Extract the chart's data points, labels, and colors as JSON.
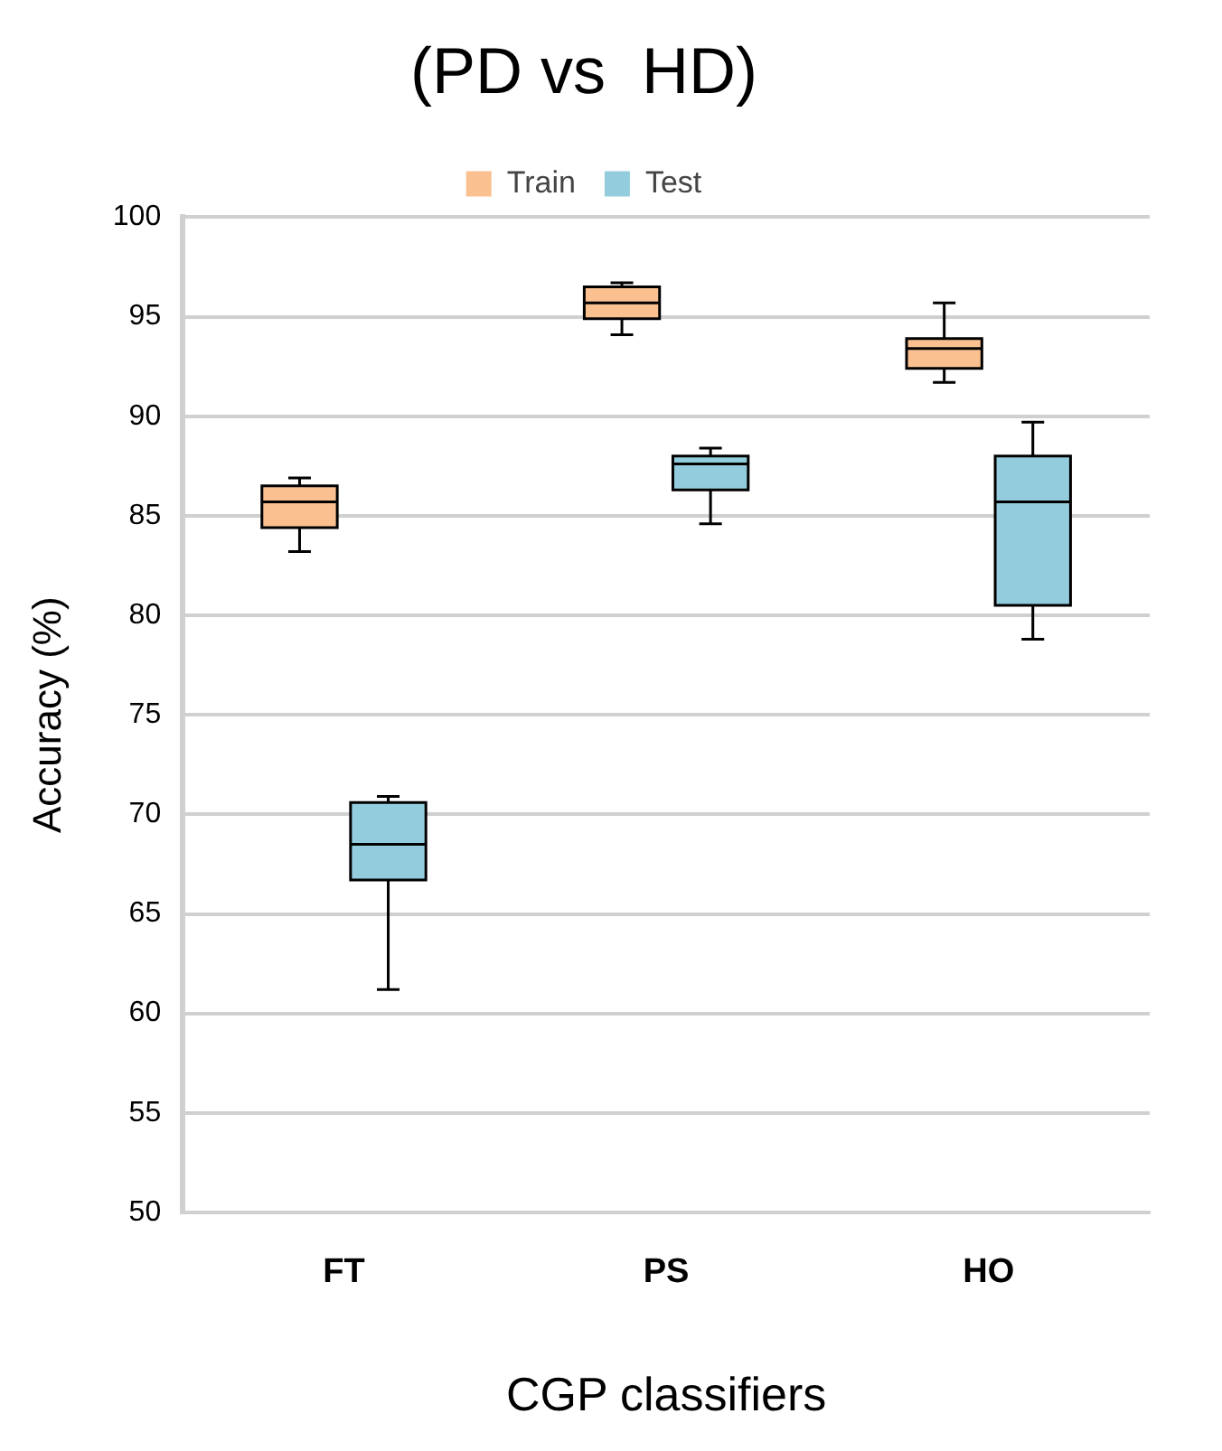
{
  "chart_data": {
    "type": "box",
    "title": "(PD vs  HD)",
    "xlabel": "CGP classifiers",
    "ylabel": "Accuracy (%)",
    "categories": [
      "FT",
      "PS",
      "HO"
    ],
    "series": [
      {
        "name": "Train",
        "color": "#fac090",
        "boxes": [
          {
            "low": 83.2,
            "q1": 84.4,
            "median": 85.7,
            "q3": 86.5,
            "high": 86.9
          },
          {
            "low": 94.1,
            "q1": 94.9,
            "median": 95.7,
            "q3": 96.5,
            "high": 96.7
          },
          {
            "low": 91.7,
            "q1": 92.4,
            "median": 93.4,
            "q3": 93.9,
            "high": 95.7
          }
        ]
      },
      {
        "name": "Test",
        "color": "#93cddd",
        "boxes": [
          {
            "low": 61.2,
            "q1": 66.7,
            "median": 68.5,
            "q3": 70.6,
            "high": 70.9
          },
          {
            "low": 84.6,
            "q1": 86.3,
            "median": 87.6,
            "q3": 88.0,
            "high": 88.4
          },
          {
            "low": 78.8,
            "q1": 80.5,
            "median": 85.7,
            "q3": 88.0,
            "high": 89.7
          }
        ]
      }
    ],
    "ylim": [
      50,
      100
    ],
    "yticks": [
      50,
      55,
      60,
      65,
      70,
      75,
      80,
      85,
      90,
      95,
      100
    ],
    "grid": "y",
    "legend": "top"
  }
}
